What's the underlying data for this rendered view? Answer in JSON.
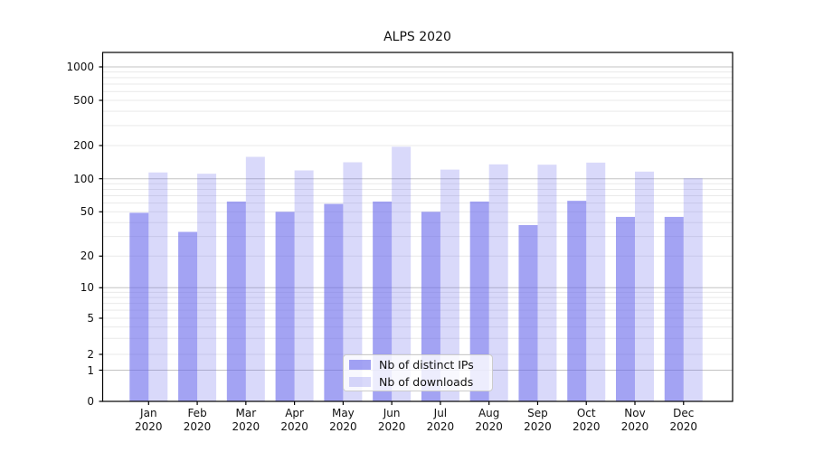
{
  "chart_data": {
    "type": "bar",
    "title": "ALPS 2020",
    "categories": [
      "Jan 2020",
      "Feb 2020",
      "Mar 2020",
      "Apr 2020",
      "May 2020",
      "Jun 2020",
      "Jul 2020",
      "Aug 2020",
      "Sep 2020",
      "Oct 2020",
      "Nov 2020",
      "Dec 2020"
    ],
    "series": [
      {
        "name": "Nb of distinct IPs",
        "color": "#6666eb",
        "alpha": 0.6,
        "values": [
          49,
          33,
          62,
          50,
          59,
          62,
          50,
          62,
          38,
          63,
          45,
          45
        ]
      },
      {
        "name": "Nb of downloads",
        "color": "#6666eb",
        "alpha": 0.25,
        "values": [
          114,
          111,
          158,
          119,
          141,
          195,
          121,
          135,
          134,
          140,
          116,
          101
        ]
      }
    ],
    "xlabel": "",
    "ylabel": "",
    "y_scale": "symlog",
    "y_ticks": [
      0,
      1,
      2,
      5,
      10,
      20,
      50,
      100,
      200,
      500,
      1000
    ],
    "ylim": [
      0,
      1350
    ],
    "grid": true,
    "legend_position": "inside-bottom-center",
    "colors": {
      "major_grid": "#c3c3c3",
      "minor_grid": "#e9e9e9",
      "axis": "#000000"
    }
  }
}
